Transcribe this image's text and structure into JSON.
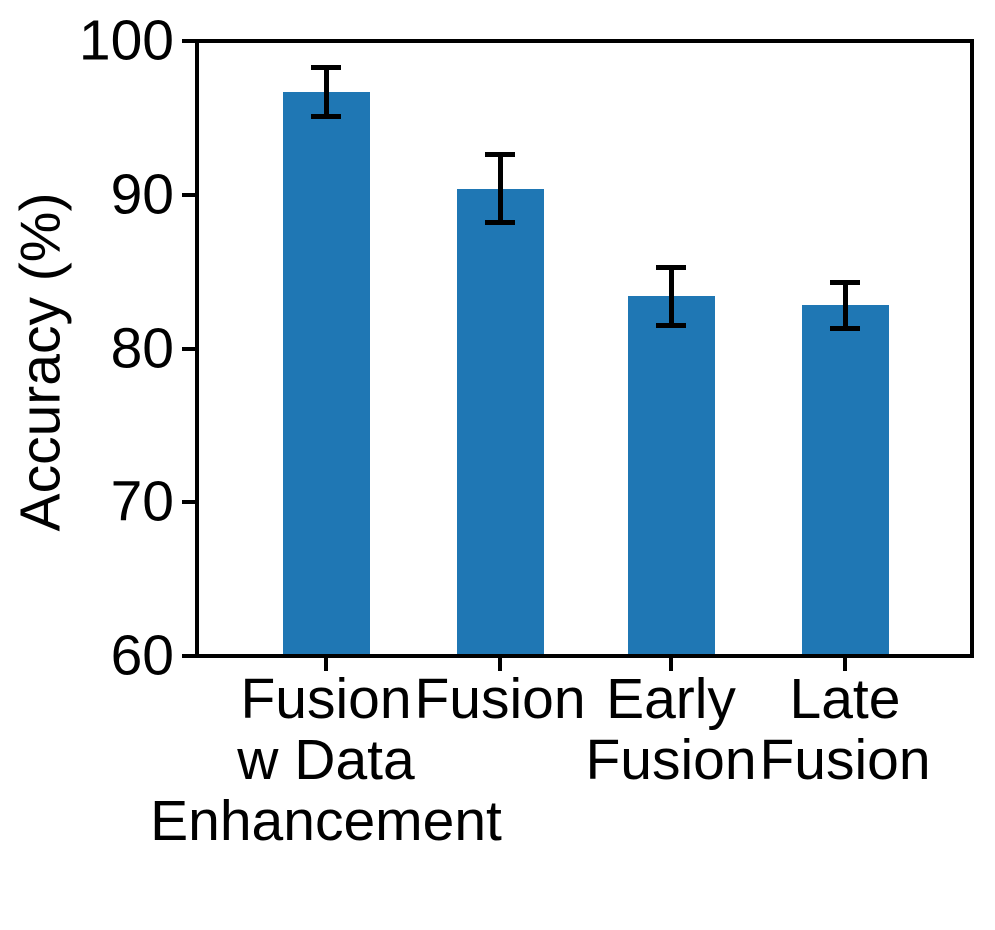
{
  "chart_data": {
    "type": "bar",
    "title": "",
    "xlabel": "",
    "ylabel": "Accuracy (%)",
    "categories": [
      "Fusion\nw Data\nEnhancement",
      "Fusion",
      "Early\nFusion",
      "Late\nFusion"
    ],
    "values": [
      96.7,
      90.4,
      83.4,
      82.8
    ],
    "errors": [
      1.6,
      2.2,
      1.9,
      1.5
    ],
    "ylim": [
      60,
      100
    ],
    "yticks": [
      60,
      70,
      80,
      90,
      100
    ],
    "grid": false,
    "legend": null,
    "bar_color": "#1f77b4",
    "error_color": "#000000",
    "axis_color": "#000000",
    "text_color": "#000000"
  }
}
